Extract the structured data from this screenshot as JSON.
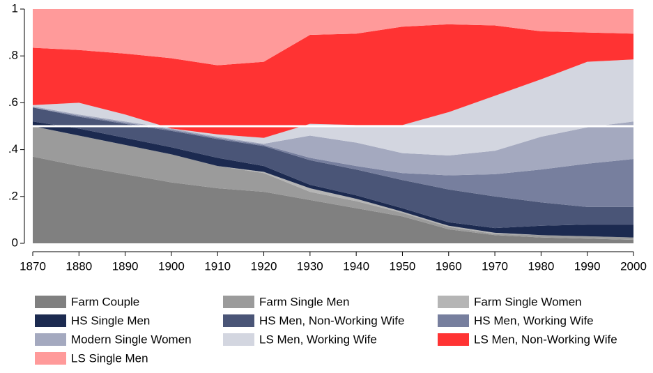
{
  "chart_data": {
    "type": "stacked_area",
    "x": [
      1870,
      1880,
      1890,
      1900,
      1910,
      1920,
      1930,
      1940,
      1950,
      1960,
      1970,
      1980,
      1990,
      2000
    ],
    "xlim": [
      1870,
      2000
    ],
    "xticks": [
      1870,
      1880,
      1890,
      1900,
      1910,
      1920,
      1930,
      1940,
      1950,
      1960,
      1970,
      1980,
      1990,
      2000
    ],
    "ylim": [
      0,
      1
    ],
    "yticks": [
      0,
      {
        "value": 0.2,
        "label": ".2"
      },
      {
        "value": 0.4,
        "label": ".4"
      },
      {
        "value": 0.6,
        "label": ".6"
      },
      {
        "value": 0.8,
        "label": ".8"
      },
      1
    ],
    "hline": 0.5,
    "series": [
      {
        "name": "Farm Couple",
        "color": "#808080",
        "values": [
          0.37,
          0.33,
          0.295,
          0.26,
          0.235,
          0.22,
          0.185,
          0.15,
          0.115,
          0.06,
          0.035,
          0.025,
          0.02,
          0.015
        ]
      },
      {
        "name": "Farm Single Men",
        "color": "#9b9b9b",
        "values": [
          0.13,
          0.13,
          0.125,
          0.12,
          0.095,
          0.08,
          0.035,
          0.03,
          0.015,
          0.01,
          0.005,
          0.01,
          0.01,
          0.01
        ]
      },
      {
        "name": "Farm Single Women",
        "color": "#b5b5b5",
        "values": [
          0,
          0,
          0,
          0,
          0,
          0.005,
          0.015,
          0.01,
          0.005,
          0.005,
          0.005,
          0,
          0,
          0
        ]
      },
      {
        "name": "HS Single Men",
        "color": "#1c2a50",
        "values": [
          0.02,
          0.03,
          0.03,
          0.03,
          0.035,
          0.025,
          0.015,
          0.015,
          0.015,
          0.015,
          0.02,
          0.04,
          0.05,
          0.055
        ]
      },
      {
        "name": "HS Men, Non-Working Wife",
        "color": "#4a5577",
        "values": [
          0.06,
          0.05,
          0.06,
          0.07,
          0.08,
          0.085,
          0.105,
          0.11,
          0.12,
          0.14,
          0.135,
          0.1,
          0.075,
          0.075
        ]
      },
      {
        "name": "HS Men, Working Wife",
        "color": "#777f9e",
        "values": [
          0,
          0.005,
          0.005,
          0.005,
          0.005,
          0.005,
          0.01,
          0.015,
          0.03,
          0.06,
          0.095,
          0.14,
          0.185,
          0.205
        ]
      },
      {
        "name": "Modern Single Women",
        "color": "#a4a9bf",
        "values": [
          0.005,
          0.005,
          0.005,
          0.005,
          0.005,
          0.005,
          0.095,
          0.1,
          0.085,
          0.085,
          0.1,
          0.14,
          0.155,
          0.16
        ]
      },
      {
        "name": "LS Men, Working Wife",
        "color": "#d3d6e0",
        "values": [
          0.005,
          0.05,
          0.03,
          0,
          0.01,
          0.025,
          0.05,
          0.075,
          0.12,
          0.185,
          0.235,
          0.245,
          0.28,
          0.265
        ]
      },
      {
        "name": "LS Men, Non-Working Wife",
        "color": "#ff3333",
        "values": [
          0.245,
          0.225,
          0.26,
          0.3,
          0.295,
          0.325,
          0.38,
          0.39,
          0.42,
          0.375,
          0.3,
          0.205,
          0.125,
          0.11
        ]
      },
      {
        "name": "LS Single Men",
        "color": "#ff9a9a",
        "values": [
          0.165,
          0.175,
          0.19,
          0.21,
          0.24,
          0.225,
          0.11,
          0.105,
          0.075,
          0.065,
          0.07,
          0.095,
          0.1,
          0.105
        ]
      }
    ]
  }
}
